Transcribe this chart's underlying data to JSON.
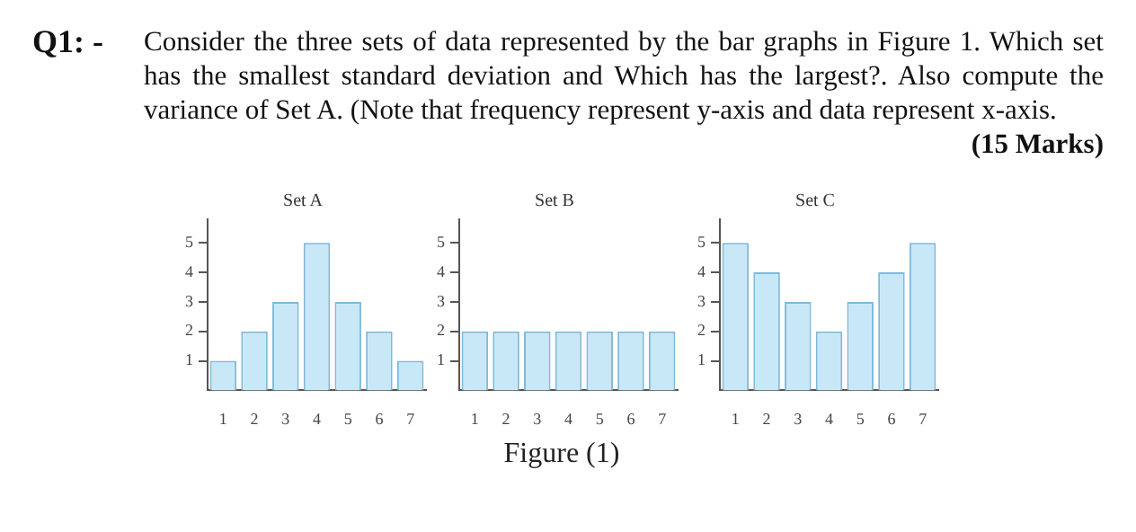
{
  "chart_data": [
    {
      "type": "other",
      "annotations": [
        "Q1: -",
        "Consider the three sets of data represented by the bar graphs in Figure 1. Which set has the smallest standard deviation and Which has the largest?. Also compute the variance of Set A. (Note that frequency represent y-axis and data represent x-axis.",
        "(15 Marks)"
      ]
    },
    {
      "type": "bar",
      "title": "Set A",
      "categories": [
        "1",
        "2",
        "3",
        "4",
        "5",
        "6",
        "7"
      ],
      "values": [
        1,
        2,
        3,
        5,
        3,
        2,
        1
      ],
      "color": "#c9e8f7",
      "ylim": [
        0,
        5.8
      ],
      "yticks": [
        1,
        2,
        3,
        4,
        5
      ],
      "grid": false,
      "legend": false
    },
    {
      "type": "bar",
      "title": "Set B",
      "categories": [
        "1",
        "2",
        "3",
        "4",
        "5",
        "6",
        "7"
      ],
      "values": [
        2,
        2,
        2,
        2,
        2,
        2,
        2
      ],
      "color": "#c9e8f7",
      "ylim": [
        0,
        5.8
      ],
      "yticks": [
        1,
        2,
        3,
        4,
        5
      ],
      "grid": false,
      "legend": false,
      "annotations": [
        "Figure (1)"
      ]
    },
    {
      "type": "bar",
      "title": "Set C",
      "categories": [
        "1",
        "2",
        "3",
        "4",
        "5",
        "6",
        "7"
      ],
      "values": [
        5,
        4,
        3,
        2,
        3,
        4,
        5
      ],
      "color": "#c9e8f7",
      "ylim": [
        0,
        5.8
      ],
      "yticks": [
        1,
        2,
        3,
        4,
        5
      ],
      "grid": false,
      "legend": false
    }
  ]
}
